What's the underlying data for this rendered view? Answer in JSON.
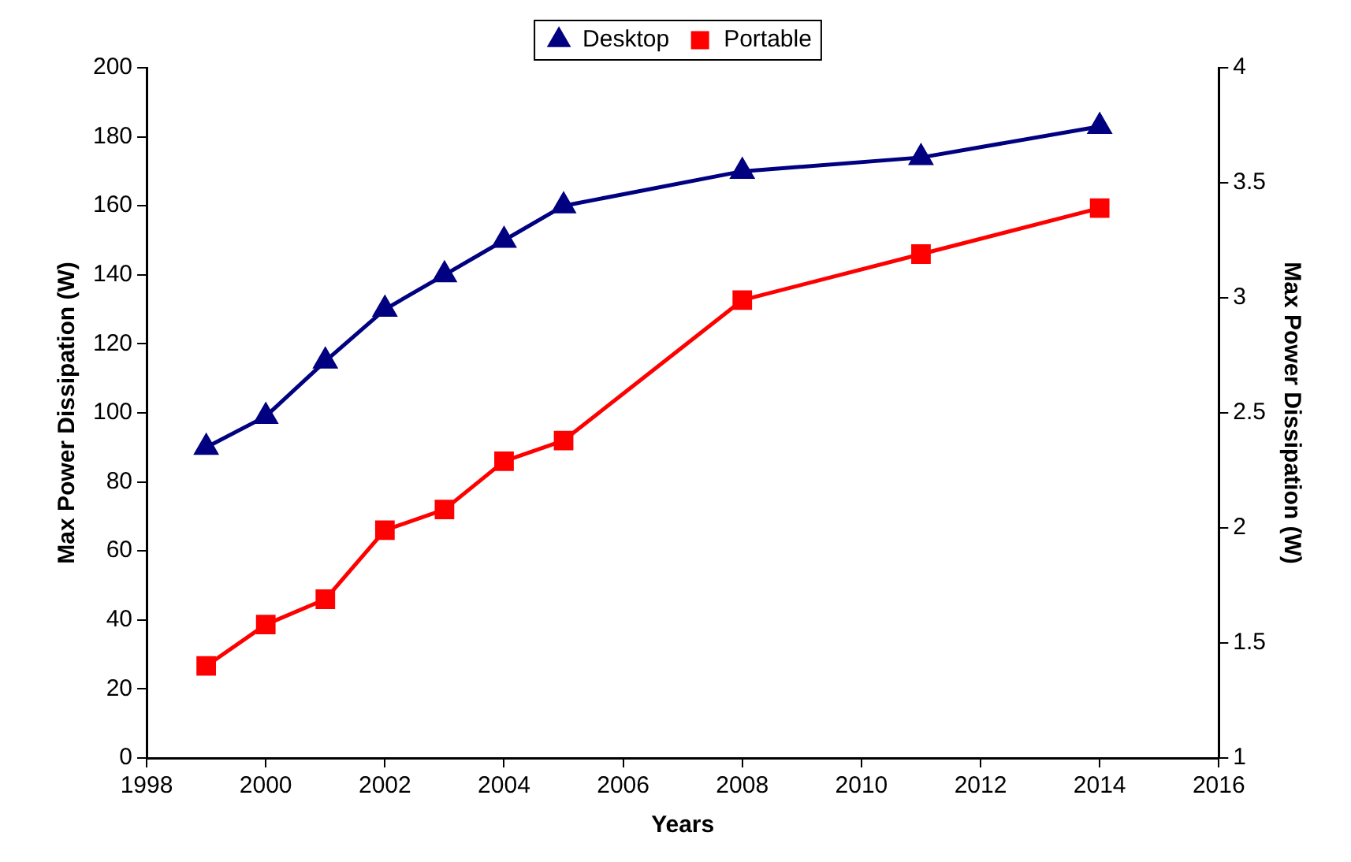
{
  "chart_data": {
    "type": "line",
    "xlabel": "Years",
    "ylabel": "Max Power Dissipation (W)",
    "y2label": "Max Power Dissipation (W)",
    "series": [
      {
        "name": "Desktop",
        "color": "#000080",
        "marker": "triangle",
        "x": [
          1999,
          2000,
          2001,
          2002,
          2003,
          2004,
          2005,
          2008,
          2011,
          2014
        ],
        "values": [
          90,
          99,
          115,
          130,
          140,
          150,
          160,
          170,
          174,
          183
        ]
      },
      {
        "name": "Portable",
        "color": "#ff0000",
        "marker": "square",
        "axis": "y2",
        "x": [
          1999,
          2000,
          2001,
          2002,
          2003,
          2004,
          2005,
          2008,
          2011,
          2014
        ],
        "values": [
          1.4,
          1.58,
          1.69,
          1.99,
          2.08,
          2.29,
          2.38,
          2.99,
          3.19,
          3.39
        ]
      }
    ],
    "xlim": [
      1998,
      2016
    ],
    "xticks": [
      1998,
      2000,
      2002,
      2004,
      2006,
      2008,
      2010,
      2012,
      2014,
      2016
    ],
    "ylim": [
      0,
      200
    ],
    "yticks": [
      0,
      20,
      40,
      60,
      80,
      100,
      120,
      140,
      160,
      180,
      200
    ],
    "y2lim": [
      1,
      4
    ],
    "y2ticks": [
      1,
      1.5,
      2,
      2.5,
      3,
      3.5,
      4
    ],
    "grid": false,
    "legend": "top",
    "line_style": "solid"
  }
}
